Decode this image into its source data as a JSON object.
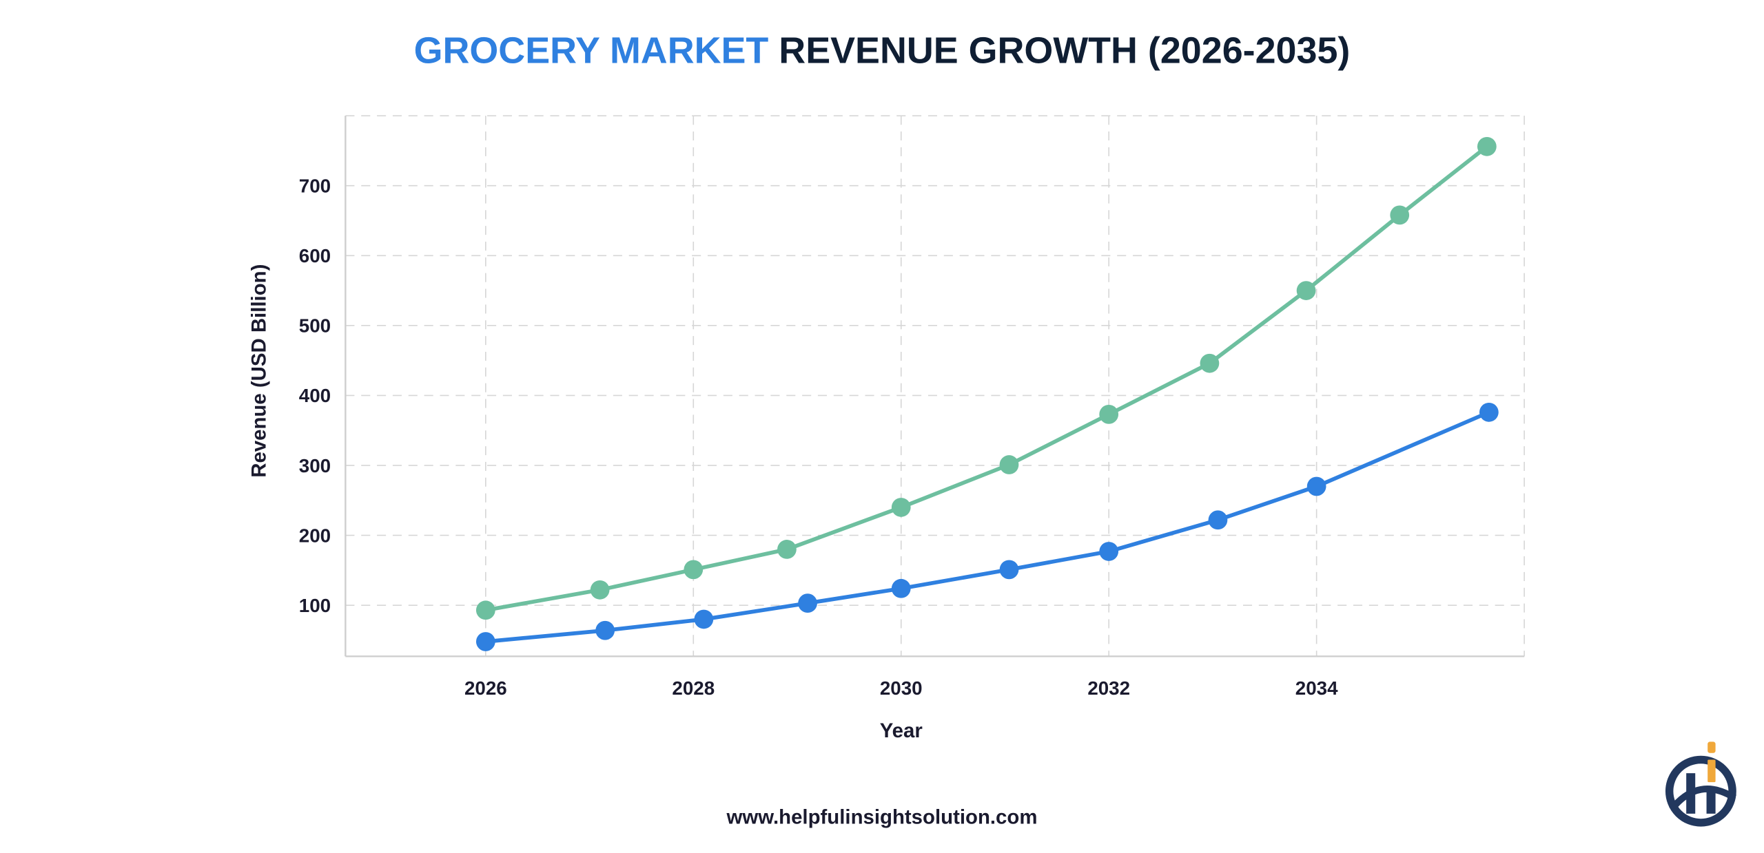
{
  "title": {
    "highlight": "GROCERY MARKET",
    "rest": " REVENUE GROWTH (2026-2035)",
    "highlight_color": "#2f80e0",
    "rest_color": "#0f1e33"
  },
  "footer": {
    "url": "www.helpfulinsightsolution.com"
  },
  "logo": {
    "text": "hi",
    "colors": {
      "primary": "#22385e",
      "accent": "#f0a83a"
    }
  },
  "chart_data": {
    "type": "line",
    "title": "GROCERY MARKET REVENUE GROWTH (2026-2035)",
    "xlabel": "Year",
    "ylabel": "Revenue (USD Billion)",
    "xlim": [
      2024.65,
      2036.0
    ],
    "ylim": [
      27,
      800
    ],
    "xticks": [
      "2026",
      "2028",
      "2030",
      "2032",
      "2034"
    ],
    "xtick_values": [
      2026,
      2028,
      2030,
      2032,
      2034
    ],
    "yticks": [
      "100",
      "200",
      "300",
      "400",
      "500",
      "600",
      "700"
    ],
    "ytick_values": [
      100,
      200,
      300,
      400,
      500,
      600,
      700
    ],
    "grid": true,
    "grid_style": "dashed",
    "legend": "none",
    "series": [
      {
        "color": "#6dbf9f",
        "x": [
          2026,
          2027.1,
          2028,
          2028.9,
          2030,
          2031.04,
          2032,
          2032.97,
          2033.9,
          2034.8,
          2035.64
        ],
        "y": [
          93,
          122,
          151,
          180,
          240,
          301,
          373,
          446,
          550,
          658,
          756
        ]
      },
      {
        "color": "#2f80e0",
        "x": [
          2026,
          2027.15,
          2028.1,
          2029.1,
          2030,
          2031.04,
          2032,
          2033.05,
          2034.0,
          2035.66
        ],
        "y": [
          48,
          64,
          80,
          103,
          124,
          151,
          177,
          222,
          270,
          376
        ]
      }
    ]
  }
}
